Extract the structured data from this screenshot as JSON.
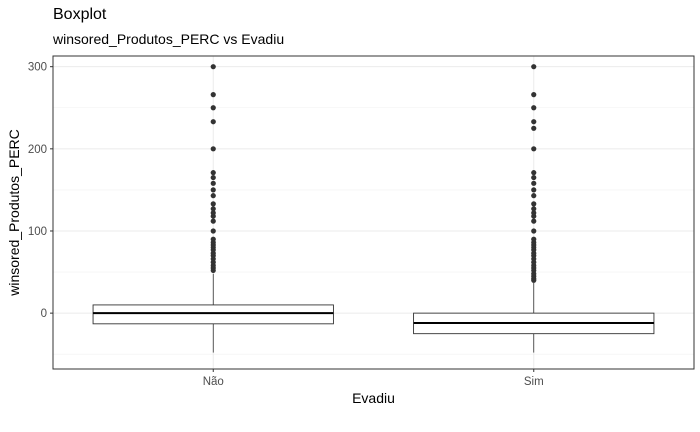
{
  "chart_data": {
    "type": "boxplot",
    "title": "Boxplot",
    "subtitle": "winsored_Produtos_PERC vs Evadiu",
    "xlabel": "Evadiu",
    "ylabel": "winsored_Produtos_PERC",
    "ylim": [
      -68,
      313
    ],
    "yticks": [
      0,
      100,
      200,
      300
    ],
    "y_tick_labels": [
      "0",
      "100",
      "200",
      "300"
    ],
    "grid": true,
    "categories": [
      "Não",
      "Sim"
    ],
    "boxes": [
      {
        "category": "Não",
        "whisker_low": -48,
        "q1": -13,
        "median": 0,
        "q3": 10,
        "whisker_high": 48,
        "outliers": [
          52,
          55,
          58,
          62,
          66,
          70,
          73,
          77,
          80,
          83,
          86,
          90,
          100,
          112,
          118,
          122,
          127,
          133,
          143,
          150,
          158,
          165,
          171,
          200,
          233,
          250,
          266,
          300
        ]
      },
      {
        "category": "Sim",
        "whisker_low": -48,
        "q1": -25,
        "median": -12,
        "q3": 0,
        "whisker_high": 37,
        "outliers": [
          40,
          42,
          45,
          48,
          52,
          55,
          58,
          62,
          66,
          70,
          73,
          77,
          80,
          83,
          86,
          90,
          100,
          112,
          118,
          122,
          127,
          133,
          143,
          150,
          158,
          165,
          171,
          200,
          225,
          233,
          250,
          266,
          300
        ]
      }
    ]
  }
}
